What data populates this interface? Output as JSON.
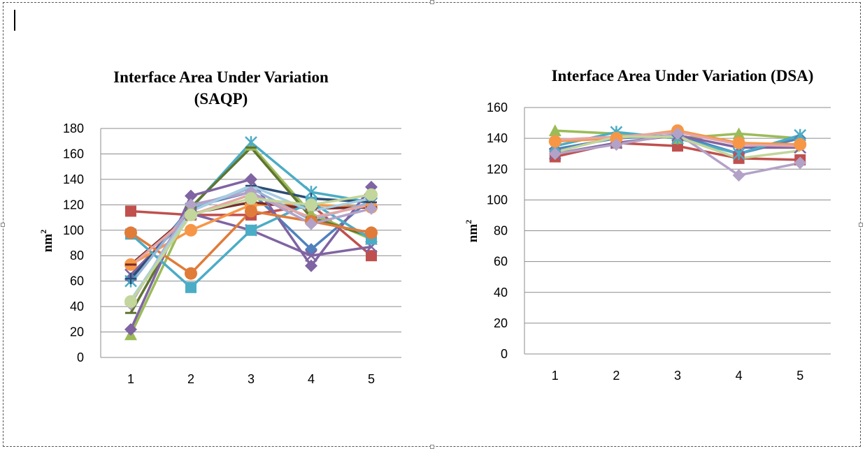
{
  "chart_data": [
    {
      "type": "line",
      "title_line1": "Interface Area Under Variation",
      "title_line2": "(SAQP)",
      "ylabel": "nm",
      "ylabel_sup": "2",
      "ylim": [
        0,
        180
      ],
      "yticks": [
        0,
        20,
        40,
        60,
        80,
        100,
        120,
        140,
        160,
        180
      ],
      "categories": [
        "1",
        "2",
        "3",
        "4",
        "5"
      ],
      "grid": true,
      "series": [
        {
          "color": "#4F81BD",
          "marker": "diamond",
          "values": [
            62,
            118,
            130,
            85,
            125
          ]
        },
        {
          "color": "#C0504D",
          "marker": "square",
          "values": [
            115,
            112,
            112,
            120,
            80
          ]
        },
        {
          "color": "#9BBB59",
          "marker": "triangle",
          "values": [
            18,
            118,
            167,
            113,
            93
          ]
        },
        {
          "color": "#8064A2",
          "marker": "x",
          "values": [
            65,
            113,
            100,
            80,
            87
          ]
        },
        {
          "color": "#4BACC6",
          "marker": "star",
          "values": [
            60,
            117,
            169,
            130,
            122
          ]
        },
        {
          "color": "#F79646",
          "marker": "circle",
          "values": [
            73,
            100,
            120,
            120,
            118
          ]
        },
        {
          "color": "#2C4D75",
          "marker": "plus",
          "values": [
            62,
            115,
            135,
            125,
            122
          ]
        },
        {
          "color": "#772C2A",
          "marker": "dash",
          "values": [
            73,
            113,
            122,
            117,
            118
          ]
        },
        {
          "color": "#5F7530",
          "marker": "dash",
          "values": [
            35,
            118,
            165,
            110,
            95
          ]
        },
        {
          "color": "#7F63A2",
          "marker": "diamond",
          "values": [
            22,
            127,
            140,
            72,
            134
          ]
        },
        {
          "color": "#4BACC6",
          "marker": "square",
          "values": [
            97,
            55,
            100,
            122,
            93
          ]
        },
        {
          "color": "#E07B39",
          "marker": "circle",
          "values": [
            98,
            66,
            115,
            107,
            98
          ]
        },
        {
          "color": "#95B3D7",
          "marker": "none",
          "values": [
            58,
            118,
            133,
            108,
            122
          ]
        },
        {
          "color": "#E6A5A3",
          "marker": "none",
          "values": [
            72,
            112,
            128,
            110,
            120
          ]
        },
        {
          "color": "#B3A2C7",
          "marker": "diamond",
          "values": [
            42,
            120,
            130,
            105,
            117
          ]
        },
        {
          "color": "#A6CEE3",
          "marker": "none",
          "values": [
            45,
            115,
            135,
            115,
            125
          ]
        },
        {
          "color": "#C3D69B",
          "marker": "circle",
          "values": [
            44,
            112,
            125,
            120,
            128
          ]
        }
      ]
    },
    {
      "type": "line",
      "title_line1": "Interface Area Under Variation (DSA)",
      "title_line2": "",
      "ylabel": "nm",
      "ylabel_sup": "2",
      "ylim": [
        0,
        160
      ],
      "yticks": [
        0,
        20,
        40,
        60,
        80,
        100,
        120,
        140,
        160
      ],
      "categories": [
        "1",
        "2",
        "3",
        "4",
        "5"
      ],
      "grid": true,
      "series": [
        {
          "color": "#4F81BD",
          "marker": "diamond",
          "values": [
            133,
            140,
            142,
            130,
            140
          ]
        },
        {
          "color": "#C0504D",
          "marker": "square",
          "values": [
            128,
            137,
            135,
            127,
            126
          ]
        },
        {
          "color": "#9BBB59",
          "marker": "triangle",
          "values": [
            145,
            143,
            140,
            143,
            140
          ]
        },
        {
          "color": "#8064A2",
          "marker": "x",
          "values": [
            130,
            137,
            142,
            134,
            134
          ]
        },
        {
          "color": "#4BACC6",
          "marker": "star",
          "values": [
            135,
            144,
            140,
            130,
            142
          ]
        },
        {
          "color": "#F79646",
          "marker": "circle",
          "values": [
            138,
            140,
            145,
            137,
            136
          ]
        },
        {
          "color": "#E6A5A3",
          "marker": "none",
          "values": [
            139,
            141,
            144,
            136,
            135
          ]
        },
        {
          "color": "#B3A2C7",
          "marker": "diamond",
          "values": [
            130,
            136,
            143,
            116,
            124
          ]
        },
        {
          "color": "#C3D69B",
          "marker": "none",
          "values": [
            131,
            141,
            141,
            127,
            132
          ]
        }
      ]
    }
  ]
}
